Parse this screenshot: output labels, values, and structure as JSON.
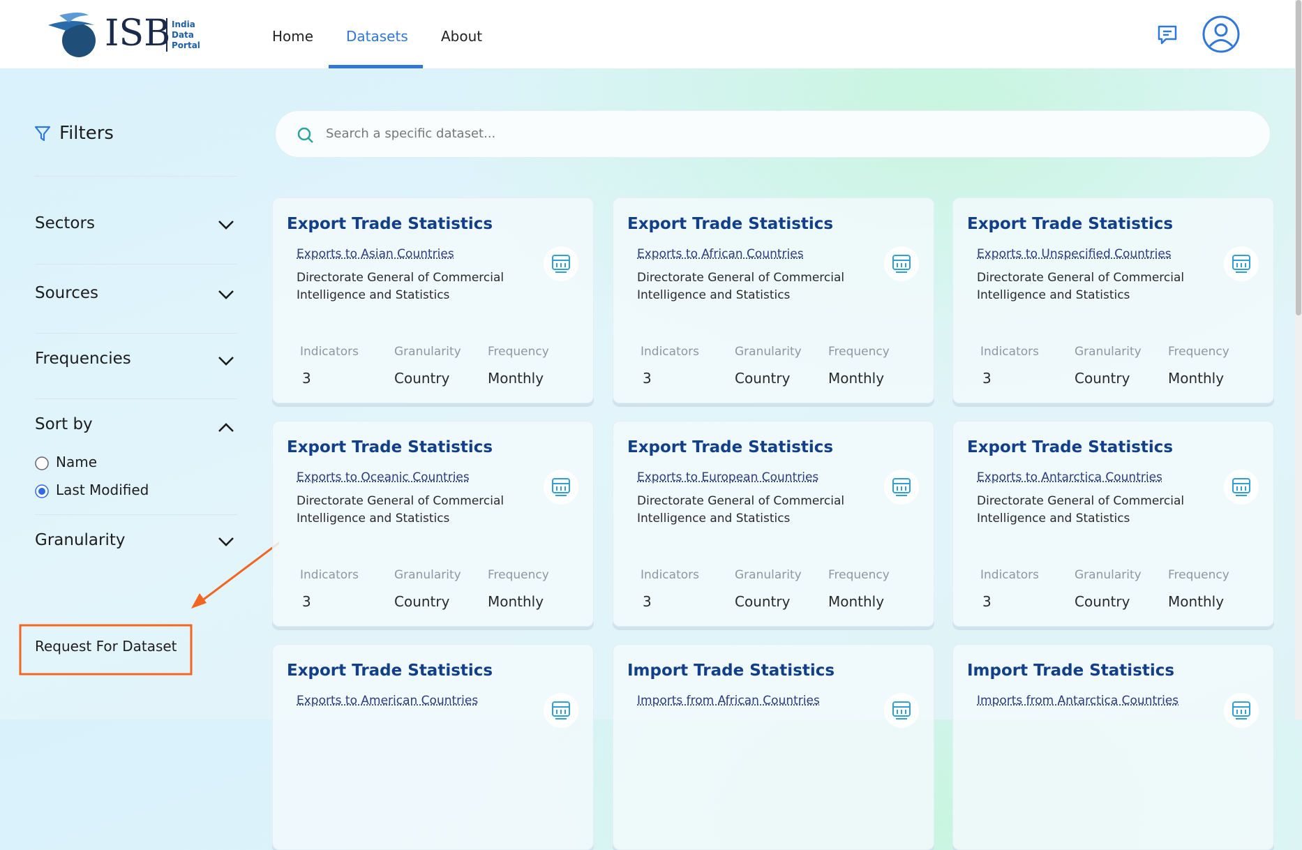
{
  "header": {
    "brand": "ISB",
    "brand_sub": [
      "India",
      "Data",
      "Portal"
    ],
    "nav": [
      "Home",
      "Datasets",
      "About"
    ]
  },
  "sidebar": {
    "title": "Filters",
    "filters": [
      "Sectors",
      "Sources",
      "Frequencies"
    ],
    "sort_title": "Sort by",
    "sort_options": [
      "Name",
      "Last Modified"
    ],
    "granularity": "Granularity",
    "request": "Request For Dataset"
  },
  "search": {
    "placeholder": "Search a specific dataset..."
  },
  "cards": [
    {
      "title": "Export Trade Statistics",
      "subtitle": "Exports to Asian Countries",
      "source": "Directorate General of Commercial Intelligence and Statistics",
      "stats": [
        {
          "label": "Indicators",
          "value": 3
        },
        {
          "label": "Granularity",
          "value": "Country"
        },
        {
          "label": "Frequency",
          "value": "Monthly"
        }
      ]
    },
    {
      "title": "Export Trade Statistics",
      "subtitle": "Exports to African Countries",
      "source": "Directorate General of Commercial Intelligence and Statistics",
      "stats": [
        {
          "label": "Indicators",
          "value": 3
        },
        {
          "label": "Granularity",
          "value": "Country"
        },
        {
          "label": "Frequency",
          "value": "Monthly"
        }
      ]
    },
    {
      "title": "Export Trade Statistics",
      "subtitle": "Exports to Unspecified Countries",
      "source": "Directorate General of Commercial Intelligence and Statistics",
      "stats": [
        {
          "label": "Indicators",
          "value": 3
        },
        {
          "label": "Granularity",
          "value": "Country"
        },
        {
          "label": "Frequency",
          "value": "Monthly"
        }
      ]
    },
    {
      "title": "Export Trade Statistics",
      "subtitle": "Exports to Oceanic Countries",
      "source": "Directorate General of Commercial Intelligence and Statistics",
      "stats": [
        {
          "label": "Indicators",
          "value": 3
        },
        {
          "label": "Granularity",
          "value": "Country"
        },
        {
          "label": "Frequency",
          "value": "Monthly"
        }
      ]
    },
    {
      "title": "Export Trade Statistics",
      "subtitle": "Exports to European Countries",
      "source": "Directorate General of Commercial Intelligence and Statistics",
      "stats": [
        {
          "label": "Indicators",
          "value": 3
        },
        {
          "label": "Granularity",
          "value": "Country"
        },
        {
          "label": "Frequency",
          "value": "Monthly"
        }
      ]
    },
    {
      "title": "Export Trade Statistics",
      "subtitle": "Exports to Antarctica Countries",
      "source": "Directorate General of Commercial Intelligence and Statistics",
      "stats": [
        {
          "label": "Indicators",
          "value": 3
        },
        {
          "label": "Granularity",
          "value": "Country"
        },
        {
          "label": "Frequency",
          "value": "Monthly"
        }
      ]
    },
    {
      "title": "Export Trade Statistics",
      "subtitle": "Exports to American Countries"
    },
    {
      "title": "Import Trade Statistics",
      "subtitle": "Imports from African Countries"
    },
    {
      "title": "Import Trade Statistics",
      "subtitle": "Imports from Antarctica Countries"
    }
  ]
}
